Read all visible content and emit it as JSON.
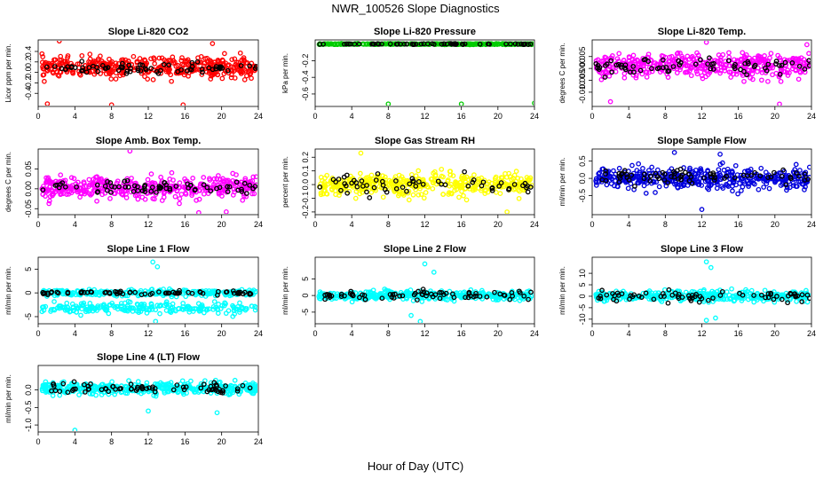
{
  "figure": {
    "title": "NWR_100526  Slope Diagnostics",
    "xlabel": "Hour of Day (UTC)"
  },
  "chart_data": [
    {
      "type": "scatter",
      "title": "Slope Li-820 CO2",
      "ylabel": "Licor ppm per min.",
      "xlim": [
        0,
        24
      ],
      "ylim": [
        -0.65,
        0.62
      ],
      "xticks": [
        0,
        4,
        8,
        12,
        16,
        20,
        24
      ],
      "yticks": [
        -0.4,
        -0.2,
        0.0,
        0.2,
        0.4
      ],
      "ytick_labels": [
        "-0.4",
        "-0.2",
        "0.0",
        "0.2",
        "0.4"
      ],
      "color": "#ff0000",
      "series": [
        {
          "values": {
            "center": 0.1,
            "spread": 0.17,
            "n": 420
          }
        },
        {
          "values": {
            "center": 0.08,
            "spread": 0.1,
            "n": 70
          }
        }
      ],
      "outliers": [
        [
          2.3,
          0.6
        ],
        [
          1.0,
          -0.6
        ],
        [
          8.0,
          -0.62
        ],
        [
          15.8,
          -0.62
        ],
        [
          19.0,
          0.55
        ]
      ]
    },
    {
      "type": "scatter",
      "title": "Slope Li-820 Pressure",
      "ylabel": "kPa per min.",
      "xlim": [
        0,
        24
      ],
      "ylim": [
        -0.75,
        0.05
      ],
      "xticks": [
        0,
        4,
        8,
        12,
        16,
        20,
        24
      ],
      "yticks": [
        -0.6,
        -0.4,
        -0.2
      ],
      "ytick_labels": [
        "-0.6",
        "-0.4",
        "-0.2"
      ],
      "color": "#00cc00",
      "series": [
        {
          "values": {
            "center": 0.0,
            "spread": 0.005,
            "n": 400
          }
        },
        {
          "values": {
            "center": 0.0,
            "spread": 0.005,
            "n": 60
          }
        }
      ],
      "outliers": [
        [
          8.0,
          -0.72
        ],
        [
          16.0,
          -0.72
        ],
        [
          24.0,
          -0.71
        ]
      ]
    },
    {
      "type": "scatter",
      "title": "Slope Li-820 Temp.",
      "ylabel": "degrees C per min.",
      "xlim": [
        0,
        24
      ],
      "ylim": [
        -0.016,
        0.012
      ],
      "xticks": [
        0,
        4,
        8,
        12,
        16,
        20,
        24
      ],
      "yticks": [
        -0.01,
        -0.005,
        0.0,
        0.005
      ],
      "ytick_labels": [
        "-0.010",
        "-0.005",
        "0.000",
        "0.005"
      ],
      "color": "#ff00ff",
      "series": [
        {
          "values": {
            "center": 0.001,
            "spread": 0.0045,
            "n": 420
          }
        },
        {
          "values": {
            "center": 0.001,
            "spread": 0.003,
            "n": 70
          }
        }
      ],
      "outliers": [
        [
          2.0,
          -0.014
        ],
        [
          20.5,
          -0.015
        ],
        [
          12.5,
          0.011
        ],
        [
          23.5,
          0.01
        ]
      ]
    },
    {
      "type": "scatter",
      "title": "Slope Amb. Box Temp.",
      "ylabel": "degrees C per min.",
      "xlim": [
        0,
        24
      ],
      "ylim": [
        -0.065,
        0.1
      ],
      "xticks": [
        0,
        4,
        8,
        12,
        16,
        20,
        24
      ],
      "yticks": [
        -0.05,
        0.0,
        0.05
      ],
      "ytick_labels": [
        "-0.05",
        "0.00",
        "0.05"
      ],
      "color": "#ff00ff",
      "series": [
        {
          "values": {
            "center": 0.003,
            "spread": 0.025,
            "n": 420
          }
        },
        {
          "values": {
            "center": 0.003,
            "spread": 0.015,
            "n": 70
          }
        }
      ],
      "outliers": [
        [
          10.0,
          0.095
        ],
        [
          17.5,
          -0.06
        ],
        [
          20.5,
          -0.058
        ]
      ]
    },
    {
      "type": "scatter",
      "title": "Slope Gas Stream RH",
      "ylabel": "percent per min.",
      "xlim": [
        0,
        24
      ],
      "ylim": [
        -0.22,
        0.26
      ],
      "xticks": [
        0,
        4,
        8,
        12,
        16,
        20,
        24
      ],
      "yticks": [
        -0.2,
        -0.1,
        0.0,
        0.1,
        0.2
      ],
      "ytick_labels": [
        "-0.2",
        "-0.1",
        "0.0",
        "0.1",
        "0.2"
      ],
      "color": "#ffff00",
      "series": [
        {
          "values": {
            "center": 0.0,
            "spread": 0.07,
            "n": 420
          }
        },
        {
          "values": {
            "center": 0.0,
            "spread": 0.06,
            "n": 60
          }
        }
      ],
      "outliers": [
        [
          5.0,
          0.23
        ],
        [
          21.0,
          -0.2
        ]
      ]
    },
    {
      "type": "scatter",
      "title": "Slope Sample Flow",
      "ylabel": "ml/min per min.",
      "xlim": [
        0,
        24
      ],
      "ylim": [
        -1.05,
        0.85
      ],
      "xticks": [
        0,
        4,
        8,
        12,
        16,
        20,
        24
      ],
      "yticks": [
        -0.5,
        0.0,
        0.5
      ],
      "ytick_labels": [
        "-0.5",
        "0.0",
        "0.5"
      ],
      "color": "#0000dd",
      "series": [
        {
          "values": {
            "center": 0.0,
            "spread": 0.28,
            "n": 420
          }
        },
        {
          "values": {
            "center": 0.05,
            "spread": 0.2,
            "n": 70
          }
        }
      ],
      "outliers": [
        [
          9.0,
          0.75
        ],
        [
          12.0,
          -0.9
        ],
        [
          14.0,
          0.7
        ]
      ]
    },
    {
      "type": "scatter",
      "title": "Slope Line 1 Flow",
      "ylabel": "ml/min per min.",
      "xlim": [
        0,
        24
      ],
      "ylim": [
        -6.5,
        7.5
      ],
      "xticks": [
        0,
        4,
        8,
        12,
        16,
        20,
        24
      ],
      "yticks": [
        -5,
        0,
        5
      ],
      "ytick_labels": [
        "-5",
        "0",
        "5"
      ],
      "color": "#00ffff",
      "series": [
        {
          "values": {
            "center": 0.0,
            "spread": 0.6,
            "n": 260
          }
        },
        {
          "values": {
            "center": -3.2,
            "spread": 1.1,
            "n": 230
          }
        },
        {
          "values": {
            "center": 0.0,
            "spread": 0.3,
            "n": 70
          }
        }
      ],
      "outliers": [
        [
          12.5,
          6.5
        ],
        [
          13.0,
          5.5
        ],
        [
          12.8,
          -6.0
        ]
      ]
    },
    {
      "type": "scatter",
      "title": "Slope Line 2 Flow",
      "ylabel": "ml/min per min.",
      "xlim": [
        0,
        24
      ],
      "ylim": [
        -8.5,
        11.5
      ],
      "xticks": [
        0,
        4,
        8,
        12,
        16,
        20,
        24
      ],
      "yticks": [
        -5,
        0,
        5
      ],
      "ytick_labels": [
        "-5",
        "0",
        "5"
      ],
      "color": "#00ffff",
      "series": [
        {
          "values": {
            "center": 0.0,
            "spread": 1.2,
            "n": 400
          }
        },
        {
          "values": {
            "center": 0.0,
            "spread": 1.5,
            "n": 70
          }
        }
      ],
      "outliers": [
        [
          12.0,
          9.5
        ],
        [
          13.0,
          7.0
        ],
        [
          11.5,
          -7.8
        ],
        [
          10.5,
          -6.0
        ]
      ]
    },
    {
      "type": "scatter",
      "title": "Slope Line 3 Flow",
      "ylabel": "ml/min per min.",
      "xlim": [
        0,
        24
      ],
      "ylim": [
        -12,
        17
      ],
      "xticks": [
        0,
        4,
        8,
        12,
        16,
        20,
        24
      ],
      "yticks": [
        -10,
        -5,
        0,
        5,
        10
      ],
      "ytick_labels": [
        "-10",
        "-5",
        "0",
        "5",
        "10"
      ],
      "color": "#00ffff",
      "series": [
        {
          "values": {
            "center": 0.0,
            "spread": 2.0,
            "n": 400
          }
        },
        {
          "values": {
            "center": 0.0,
            "spread": 2.0,
            "n": 70
          }
        }
      ],
      "outliers": [
        [
          12.5,
          15.0
        ],
        [
          13.0,
          12.5
        ],
        [
          12.5,
          -10.5
        ],
        [
          13.5,
          -9.5
        ]
      ]
    },
    {
      "type": "scatter",
      "title": "Slope Line 4 (LT) Flow",
      "ylabel": "ml/min per min.",
      "xlim": [
        0,
        24
      ],
      "ylim": [
        -1.2,
        0.7
      ],
      "xticks": [
        0,
        4,
        8,
        12,
        16,
        20,
        24
      ],
      "yticks": [
        -1.0,
        -0.5,
        0.0
      ],
      "ytick_labels": [
        "-1.0",
        "-0.5",
        "0.0"
      ],
      "color": "#00ffff",
      "series": [
        {
          "values": {
            "center": 0.05,
            "spread": 0.15,
            "n": 420
          }
        },
        {
          "values": {
            "center": 0.05,
            "spread": 0.12,
            "n": 70
          }
        }
      ],
      "outliers": [
        [
          4.0,
          -1.15
        ],
        [
          12.0,
          -0.6
        ],
        [
          19.5,
          -0.65
        ]
      ]
    }
  ]
}
